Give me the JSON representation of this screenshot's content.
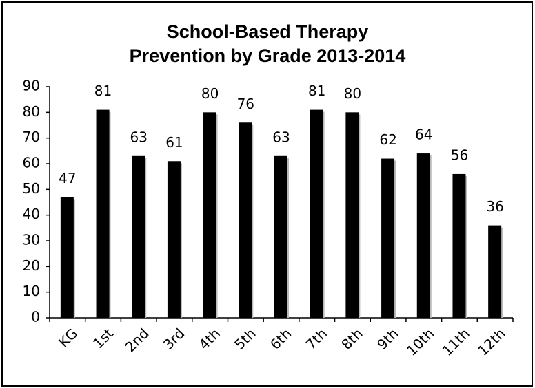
{
  "chart_data": {
    "type": "bar",
    "title": [
      "School-Based Therapy",
      "Prevention by Grade 2013-2014"
    ],
    "categories": [
      "KG",
      "1st",
      "2nd",
      "3rd",
      "4th",
      "5th",
      "6th",
      "7th",
      "8th",
      "9th",
      "10th",
      "11th",
      "12th"
    ],
    "values": [
      47,
      81,
      63,
      61,
      80,
      76,
      63,
      81,
      80,
      62,
      64,
      56,
      36
    ],
    "color": "#000000",
    "ylim": [
      0,
      90
    ],
    "yticks": [
      0,
      10,
      20,
      30,
      40,
      50,
      60,
      70,
      80,
      90
    ],
    "grid": false
  }
}
